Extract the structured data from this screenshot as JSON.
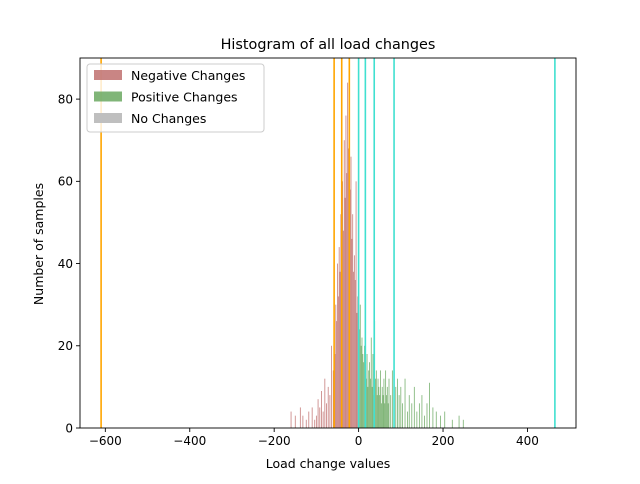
{
  "chart_data": {
    "type": "bar",
    "title": "Histogram of all load changes",
    "xlabel": "Load change values",
    "ylabel": "Number of samples",
    "xlim": [
      -660,
      515
    ],
    "ylim": [
      0,
      90
    ],
    "xticks": [
      -600,
      -400,
      -200,
      0,
      200,
      400
    ],
    "xtick_labels": [
      "−600",
      "−400",
      "−200",
      "0",
      "200",
      "400"
    ],
    "yticks": [
      0,
      20,
      40,
      60,
      80
    ],
    "ytick_labels": [
      "0",
      "20",
      "40",
      "60",
      "80"
    ],
    "legend_position": "upper-left",
    "series": [
      {
        "name": "Negative Changes",
        "color": "#c0706f",
        "opacity": 0.85,
        "bin_width": 2,
        "bins": [
          [
            -160,
            4
          ],
          [
            -150,
            3
          ],
          [
            -138,
            5
          ],
          [
            -132,
            3
          ],
          [
            -124,
            2
          ],
          [
            -118,
            4
          ],
          [
            -110,
            5
          ],
          [
            -104,
            2
          ],
          [
            -100,
            3
          ],
          [
            -96,
            7
          ],
          [
            -92,
            5
          ],
          [
            -88,
            9
          ],
          [
            -84,
            4
          ],
          [
            -80,
            12
          ],
          [
            -76,
            6
          ],
          [
            -72,
            10
          ],
          [
            -68,
            8
          ],
          [
            -64,
            20
          ],
          [
            -60,
            14
          ],
          [
            -58,
            24
          ],
          [
            -56,
            18
          ],
          [
            -54,
            30
          ],
          [
            -52,
            26
          ],
          [
            -50,
            40
          ],
          [
            -48,
            32
          ],
          [
            -46,
            44
          ],
          [
            -44,
            38
          ],
          [
            -42,
            52
          ],
          [
            -40,
            46
          ],
          [
            -38,
            60
          ],
          [
            -36,
            48
          ],
          [
            -34,
            70
          ],
          [
            -32,
            56
          ],
          [
            -30,
            76
          ],
          [
            -28,
            62
          ],
          [
            -26,
            84
          ],
          [
            -24,
            68
          ],
          [
            -22,
            72
          ],
          [
            -20,
            58
          ],
          [
            -18,
            66
          ],
          [
            -16,
            46
          ],
          [
            -14,
            52
          ],
          [
            -12,
            38
          ],
          [
            -10,
            42
          ],
          [
            -8,
            36
          ],
          [
            -6,
            60
          ],
          [
            -4,
            28
          ],
          [
            -2,
            32
          ]
        ]
      },
      {
        "name": "Positive Changes",
        "color": "#6aa860",
        "opacity": 0.85,
        "bin_width": 2,
        "bins": [
          [
            2,
            24
          ],
          [
            4,
            30
          ],
          [
            6,
            20
          ],
          [
            8,
            22
          ],
          [
            10,
            18
          ],
          [
            12,
            16
          ],
          [
            14,
            20
          ],
          [
            16,
            14
          ],
          [
            18,
            12
          ],
          [
            20,
            18
          ],
          [
            22,
            10
          ],
          [
            24,
            14
          ],
          [
            26,
            16
          ],
          [
            28,
            12
          ],
          [
            30,
            22
          ],
          [
            32,
            10
          ],
          [
            34,
            18
          ],
          [
            36,
            8
          ],
          [
            38,
            26
          ],
          [
            40,
            12
          ],
          [
            42,
            14
          ],
          [
            44,
            8
          ],
          [
            46,
            12
          ],
          [
            48,
            10
          ],
          [
            50,
            8
          ],
          [
            52,
            14
          ],
          [
            54,
            6
          ],
          [
            56,
            10
          ],
          [
            58,
            8
          ],
          [
            60,
            12
          ],
          [
            62,
            6
          ],
          [
            64,
            14
          ],
          [
            66,
            8
          ],
          [
            68,
            10
          ],
          [
            70,
            6
          ],
          [
            72,
            12
          ],
          [
            76,
            8
          ],
          [
            80,
            14
          ],
          [
            84,
            6
          ],
          [
            88,
            10
          ],
          [
            92,
            12
          ],
          [
            96,
            8
          ],
          [
            100,
            10
          ],
          [
            104,
            6
          ],
          [
            110,
            12
          ],
          [
            116,
            4
          ],
          [
            120,
            8
          ],
          [
            126,
            6
          ],
          [
            132,
            10
          ],
          [
            138,
            4
          ],
          [
            144,
            6
          ],
          [
            150,
            8
          ],
          [
            156,
            3
          ],
          [
            162,
            6
          ],
          [
            168,
            11
          ],
          [
            176,
            5
          ],
          [
            184,
            4
          ],
          [
            194,
            3
          ],
          [
            204,
            4
          ],
          [
            222,
            2
          ],
          [
            238,
            3
          ],
          [
            248,
            2
          ]
        ]
      },
      {
        "name": "No Changes",
        "color": "#bfbfbf",
        "opacity": 1,
        "bin_width": 2,
        "bins": []
      }
    ],
    "vertical_lines": [
      {
        "x": -610,
        "color": "#ffa500"
      },
      {
        "x": -58,
        "color": "#ffa500"
      },
      {
        "x": -40,
        "color": "#ffa500"
      },
      {
        "x": -22,
        "color": "#ffa500"
      },
      {
        "x": 0,
        "color": "#40e0d0"
      },
      {
        "x": 16,
        "color": "#40e0d0"
      },
      {
        "x": 37,
        "color": "#40e0d0"
      },
      {
        "x": 84,
        "color": "#40e0d0"
      },
      {
        "x": 465,
        "color": "#40e0d0"
      }
    ]
  }
}
